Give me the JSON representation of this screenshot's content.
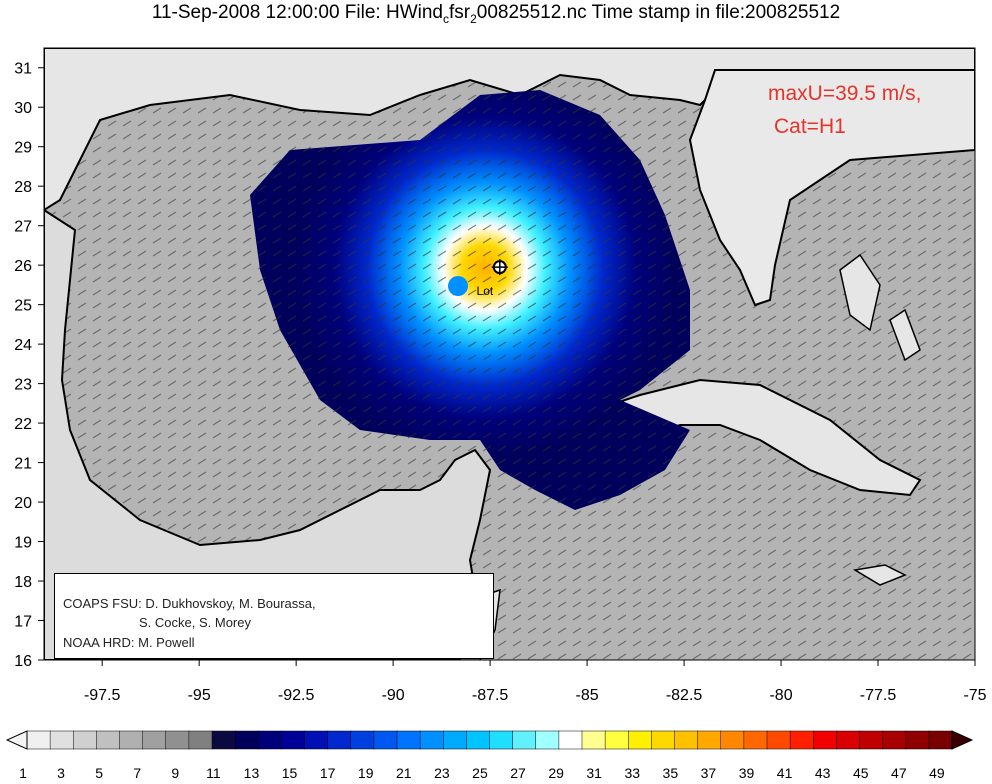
{
  "title": {
    "prefix": "11-Sep-2008 12:00:00 File: HWind",
    "sub1": "c",
    "mid": "fsr",
    "sub2": "2",
    "suffix": "00825512.nc Time stamp in file:200825512"
  },
  "map_data": {
    "type": "wind-speed field with wind vectors",
    "region": "Gulf of Mexico",
    "lon_ticks": [
      "-97.5",
      "-95",
      "-92.5",
      "-90",
      "-87.5",
      "-85",
      "-82.5",
      "-80",
      "-77.5",
      "-75"
    ],
    "lat_ticks": [
      "16",
      "17",
      "18",
      "19",
      "20",
      "21",
      "22",
      "23",
      "24",
      "25",
      "26",
      "27",
      "28",
      "29",
      "30",
      "31"
    ],
    "lon_range": [
      -99,
      -75
    ],
    "lat_range": [
      16,
      31.5
    ],
    "storm_center_marker": {
      "lon": -87.25,
      "lat": 25.95
    },
    "storm_center_label": "Lot",
    "storm_center_label_pos": {
      "lon": -87.85,
      "lat": 25.35
    }
  },
  "annotation": {
    "max_wind": "maxU=39.5 m/s,",
    "category": "Cat=H1"
  },
  "credits": {
    "line1": "COAPS FSU: D. Dukhovskoy, M. Bourassa,",
    "line2": "S. Cocke, S. Morey",
    "line3": "NOAA HRD:  M. Powell"
  },
  "colorbar": {
    "labels": [
      "1",
      "3",
      "5",
      "7",
      "9",
      "11",
      "13",
      "15",
      "17",
      "19",
      "21",
      "23",
      "25",
      "27",
      "29",
      "31",
      "33",
      "35",
      "37",
      "39",
      "41",
      "43",
      "45",
      "47",
      "49"
    ],
    "colors": [
      "#f0f0f0",
      "#e0e0e0",
      "#d0d0d0",
      "#c0c0c0",
      "#b0b0b0",
      "#a0a0a0",
      "#909090",
      "#808080",
      "#0a0a40",
      "#00005c",
      "#00007a",
      "#000098",
      "#0010b4",
      "#0028cc",
      "#0040e0",
      "#0058f0",
      "#0074ff",
      "#0090ff",
      "#00aaff",
      "#00c4ff",
      "#20deff",
      "#60f0ff",
      "#a0ffff",
      "#ffffff",
      "#ffff90",
      "#ffff40",
      "#fff000",
      "#ffd800",
      "#ffc000",
      "#ffa800",
      "#ff8800",
      "#ff6800",
      "#ff4800",
      "#ff2000",
      "#f00000",
      "#d80000",
      "#c00000",
      "#a80000",
      "#900000",
      "#780000"
    ]
  }
}
